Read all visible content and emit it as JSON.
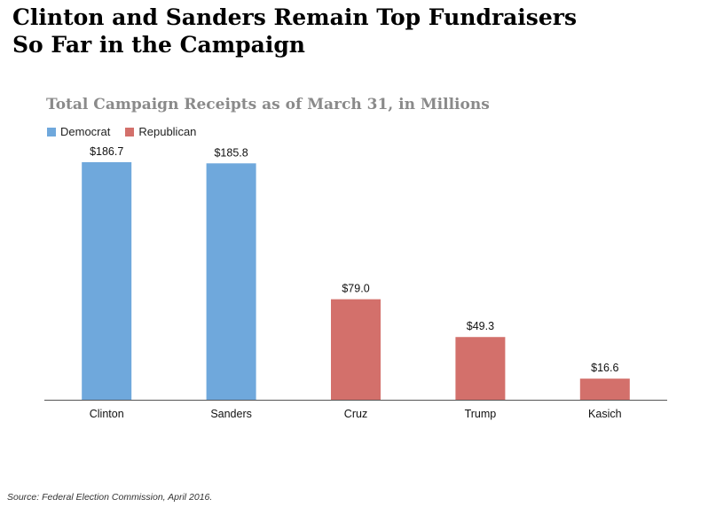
{
  "headline": {
    "line1": "Clinton and Sanders Remain Top Fundraisers",
    "line2": "So Far in the Campaign"
  },
  "source": "Source: Federal Election Commission, April 2016.",
  "colors": {
    "democrat": "#6fa8dc",
    "republican": "#d3706b",
    "axis": "#555555",
    "chart_title": "#8a8a8a"
  },
  "chart_data": {
    "type": "bar",
    "title": "Total Campaign Receipts as of March 31, in Millions",
    "xlabel": "",
    "ylabel": "",
    "categories": [
      "Clinton",
      "Sanders",
      "Cruz",
      "Trump",
      "Kasich"
    ],
    "values": [
      186.7,
      185.8,
      79.0,
      49.3,
      16.6
    ],
    "value_labels": [
      "$186.7",
      "$185.8",
      "$79.0",
      "$49.3",
      "$16.6"
    ],
    "party": [
      "Democrat",
      "Democrat",
      "Republican",
      "Republican",
      "Republican"
    ],
    "legend": [
      {
        "name": "Democrat",
        "color": "#6fa8dc"
      },
      {
        "name": "Republican",
        "color": "#d3706b"
      }
    ],
    "legend_position": "top-left",
    "ylim": [
      0,
      186.7
    ],
    "grid": false,
    "y_axis_visible": false
  }
}
